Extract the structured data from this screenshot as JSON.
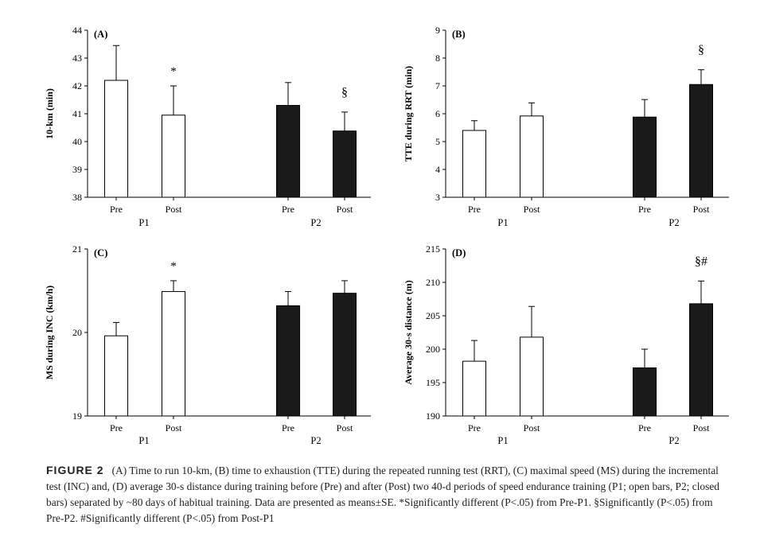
{
  "chart_data": [
    {
      "panel": "(A)",
      "type": "bar",
      "ylabel": "10-km (min)",
      "ylim": [
        38,
        44
      ],
      "yticks": [
        38,
        39,
        40,
        41,
        42,
        43,
        44
      ],
      "groups": [
        "P1",
        "P2"
      ],
      "categories": [
        "Pre",
        "Post",
        "Pre",
        "Post"
      ],
      "fills": [
        "open",
        "open",
        "closed",
        "closed"
      ],
      "values": [
        42.2,
        40.95,
        41.3,
        40.38
      ],
      "errors": [
        1.25,
        1.05,
        0.82,
        0.68
      ],
      "markers": [
        "",
        "*",
        "",
        "§"
      ]
    },
    {
      "panel": "(B)",
      "type": "bar",
      "ylabel": "TTE during RRT (min)",
      "ylim": [
        3,
        9
      ],
      "yticks": [
        3,
        4,
        5,
        6,
        7,
        8,
        9
      ],
      "groups": [
        "P1",
        "P2"
      ],
      "categories": [
        "Pre",
        "Post",
        "Pre",
        "Post"
      ],
      "fills": [
        "open",
        "open",
        "closed",
        "closed"
      ],
      "values": [
        5.4,
        5.92,
        5.88,
        7.05
      ],
      "errors": [
        0.35,
        0.47,
        0.63,
        0.53
      ],
      "markers": [
        "",
        "",
        "",
        "§"
      ]
    },
    {
      "panel": "(C)",
      "type": "bar",
      "ylabel": "MS during INC (km/h)",
      "ylim": [
        19,
        21
      ],
      "yticks": [
        19,
        20,
        21
      ],
      "groups": [
        "P1",
        "P2"
      ],
      "categories": [
        "Pre",
        "Post",
        "Pre",
        "Post"
      ],
      "fills": [
        "open",
        "open",
        "closed",
        "closed"
      ],
      "values": [
        19.96,
        20.49,
        20.32,
        20.47
      ],
      "errors": [
        0.16,
        0.13,
        0.17,
        0.15
      ],
      "markers": [
        "",
        "*",
        "",
        ""
      ]
    },
    {
      "panel": "(D)",
      "type": "bar",
      "ylabel": "Average 30-s distance (m)",
      "ylim": [
        190,
        215
      ],
      "yticks": [
        190,
        195,
        200,
        205,
        210,
        215
      ],
      "groups": [
        "P1",
        "P2"
      ],
      "categories": [
        "Pre",
        "Post",
        "Pre",
        "Post"
      ],
      "fills": [
        "open",
        "open",
        "closed",
        "closed"
      ],
      "values": [
        198.2,
        201.8,
        197.2,
        206.8
      ],
      "errors": [
        3.1,
        4.6,
        2.8,
        3.4
      ],
      "markers": [
        "",
        "",
        "",
        "§#"
      ]
    }
  ],
  "colors": {
    "open_fill": "#ffffff",
    "closed_fill": "#1a1a1a",
    "stroke": "#000000"
  },
  "caption": {
    "label": "FIGURE 2",
    "text": "(A) Time to run 10-km, (B) time to exhaustion (TTE) during the repeated running test (RRT), (C) maximal speed (MS) during the incremental test (INC) and, (D) average 30-s distance during training before (Pre) and after (Post) two 40-d periods of speed endurance training (P1; open bars, P2; closed bars) separated by ~80 days of habitual training. Data are presented as means±SE. *Significantly different (P<.05) from Pre-P1. §Significantly (P<.05) from Pre-P2. #Significantly different (P<.05) from Post-P1"
  }
}
